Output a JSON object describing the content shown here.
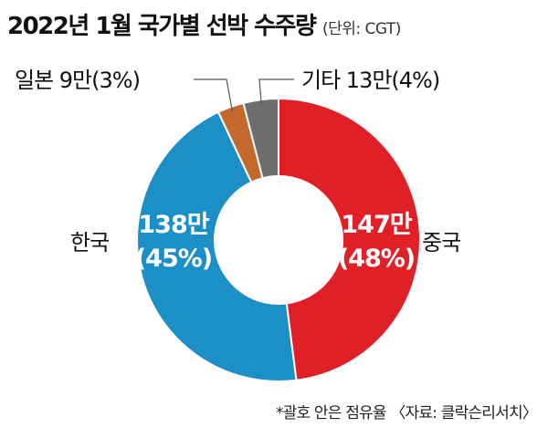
{
  "title": "2022년 1월 국가별 선박 수주량",
  "unit": "(단위: CGT)",
  "footnote": "*괄호 안은 점유율 〈자료: 클락슨리서치〉",
  "chart_data": {
    "type": "pie",
    "title": "2022년 1월 국가별 선박 수주량",
    "unit": "CGT",
    "donut": true,
    "slices": [
      {
        "name": "중국",
        "value_label": "147만",
        "percent_label": "(48%)",
        "value": 1470000,
        "percent": 48,
        "color": "#e02027"
      },
      {
        "name": "한국",
        "value_label": "138만",
        "percent_label": "(45%)",
        "value": 1380000,
        "percent": 45,
        "color": "#1b8fc6"
      },
      {
        "name": "일본",
        "value_label": "9만",
        "percent_label": "(3%)",
        "value": 90000,
        "percent": 3,
        "color": "#c4692e"
      },
      {
        "name": "기타",
        "value_label": "13만",
        "percent_label": "(4%)",
        "value": 130000,
        "percent": 4,
        "color": "#6d6e70"
      }
    ],
    "external_labels": {
      "china": "중국",
      "korea": "한국",
      "japan": "일본 9만(3%)",
      "others": "기타 13만(4%)"
    }
  }
}
